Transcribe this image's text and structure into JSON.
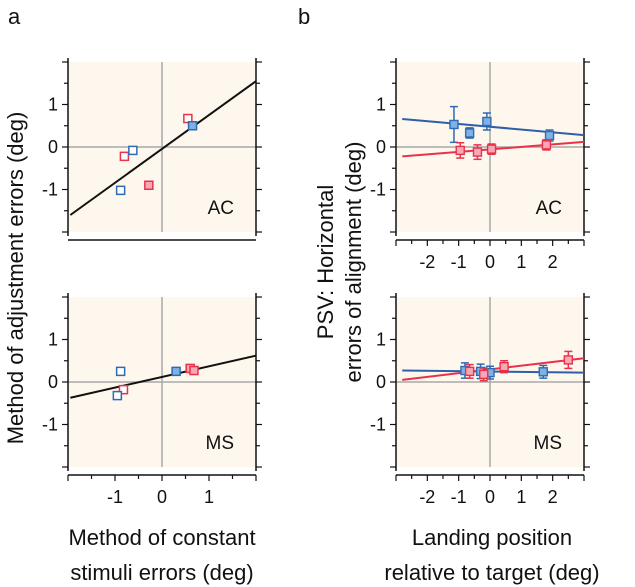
{
  "panel_letters": {
    "a": "a",
    "b": "b"
  },
  "labels": {
    "a_ylabel": "Method of adjustment errors (deg)",
    "a_xlabel_1": "Method of constant",
    "a_xlabel_2": "stimuli errors (deg)",
    "b_ylabel_1": "PSV: Horizontal",
    "b_ylabel_2": "errors of alignment (deg)",
    "b_xlabel_1": "Landing position",
    "b_xlabel_2": "relative to target (deg)"
  },
  "colors": {
    "panel_bg": "#fdf7ee",
    "red_marker": "#e8324a",
    "red_fill": "#f6a8b6",
    "blue_marker": "#2f6bb3",
    "blue_fill": "#7fb2e3",
    "fit_black": "#111111",
    "fit_red": "#e8324a",
    "fit_blue": "#2f5fa8",
    "axis_line": "#a8a8a8"
  },
  "chart_data": [
    {
      "id": "a-AC",
      "type": "scatter",
      "subject": "AC",
      "xlim": [
        -2,
        2
      ],
      "ylim": [
        -2,
        2
      ],
      "yticks": [
        "1",
        "0",
        "-1"
      ],
      "ytick_values": [
        1,
        0,
        -1
      ],
      "xticks": [],
      "xtick_values": [],
      "fit": {
        "color": "black",
        "x": [
          -1.95,
          2.0
        ],
        "y": [
          -1.6,
          1.55
        ]
      },
      "series": [
        {
          "color": "red",
          "filled": false,
          "x": [
            -0.8,
            0.55
          ],
          "y": [
            -0.22,
            0.67
          ]
        },
        {
          "color": "red",
          "filled": true,
          "x": [
            -0.28
          ],
          "y": [
            -0.9
          ]
        },
        {
          "color": "blue",
          "filled": false,
          "x": [
            -0.88,
            -0.62
          ],
          "y": [
            -1.02,
            -0.08
          ]
        },
        {
          "color": "blue",
          "filled": true,
          "x": [
            0.65
          ],
          "y": [
            0.5
          ]
        }
      ]
    },
    {
      "id": "a-MS",
      "type": "scatter",
      "subject": "MS",
      "xlim": [
        -2,
        2
      ],
      "ylim": [
        -2,
        2
      ],
      "yticks": [
        "1",
        "0",
        "-1"
      ],
      "ytick_values": [
        1,
        0,
        -1
      ],
      "xticks": [
        "-1",
        "0",
        "1"
      ],
      "xtick_values": [
        -1,
        0,
        1
      ],
      "fit": {
        "color": "black",
        "x": [
          -1.95,
          2.0
        ],
        "y": [
          -0.37,
          0.62
        ]
      },
      "series": [
        {
          "color": "red",
          "filled": false,
          "x": [
            -0.82
          ],
          "y": [
            -0.18
          ]
        },
        {
          "color": "red",
          "filled": true,
          "x": [
            0.6,
            0.68
          ],
          "y": [
            0.32,
            0.27
          ]
        },
        {
          "color": "blue",
          "filled": false,
          "x": [
            -0.95,
            -0.88
          ],
          "y": [
            -0.32,
            0.25
          ]
        },
        {
          "color": "blue",
          "filled": true,
          "x": [
            0.3
          ],
          "y": [
            0.25
          ]
        }
      ]
    },
    {
      "id": "b-AC",
      "type": "scatter",
      "subject": "AC",
      "xlim": [
        -3,
        3
      ],
      "ylim": [
        -2,
        2
      ],
      "yticks": [
        "1",
        "0",
        "-1"
      ],
      "ytick_values": [
        1,
        0,
        -1
      ],
      "xticks": [
        "-2",
        "-1",
        "0",
        "1",
        "2"
      ],
      "xtick_values": [
        -2,
        -1,
        0,
        1,
        2
      ],
      "fit_lines": [
        {
          "color": "blue",
          "x": [
            -2.8,
            3.0
          ],
          "y": [
            0.66,
            0.28
          ]
        },
        {
          "color": "red",
          "x": [
            -2.8,
            3.0
          ],
          "y": [
            -0.22,
            0.12
          ]
        }
      ],
      "series": [
        {
          "color": "blue",
          "x": [
            -1.15,
            -0.65,
            -0.1,
            1.9
          ],
          "y": [
            0.53,
            0.33,
            0.6,
            0.27
          ],
          "err": [
            0.42,
            0.12,
            0.2,
            0.13
          ]
        },
        {
          "color": "red",
          "x": [
            -0.95,
            -0.4,
            0.05,
            1.8
          ],
          "y": [
            -0.08,
            -0.12,
            -0.05,
            0.05
          ],
          "err": [
            0.18,
            0.17,
            0.12,
            0.12
          ]
        }
      ]
    },
    {
      "id": "b-MS",
      "type": "scatter",
      "subject": "MS",
      "xlim": [
        -3,
        3
      ],
      "ylim": [
        -2,
        2
      ],
      "yticks": [
        "1",
        "0",
        "-1"
      ],
      "ytick_values": [
        1,
        0,
        -1
      ],
      "xticks": [
        "-2",
        "-1",
        "0",
        "1",
        "2"
      ],
      "xtick_values": [
        -2,
        -1,
        0,
        1,
        2
      ],
      "fit_lines": [
        {
          "color": "blue",
          "x": [
            -2.8,
            3.0
          ],
          "y": [
            0.27,
            0.22
          ]
        },
        {
          "color": "red",
          "x": [
            -2.8,
            3.0
          ],
          "y": [
            0.05,
            0.56
          ]
        }
      ],
      "series": [
        {
          "color": "blue",
          "x": [
            -0.8,
            -0.3,
            0.0,
            1.7
          ],
          "y": [
            0.27,
            0.25,
            0.22,
            0.24
          ],
          "err": [
            0.18,
            0.17,
            0.15,
            0.15
          ]
        },
        {
          "color": "red",
          "x": [
            -0.65,
            -0.2,
            0.45,
            2.5
          ],
          "y": [
            0.25,
            0.18,
            0.36,
            0.52
          ],
          "err": [
            0.16,
            0.15,
            0.14,
            0.2
          ]
        }
      ]
    }
  ]
}
